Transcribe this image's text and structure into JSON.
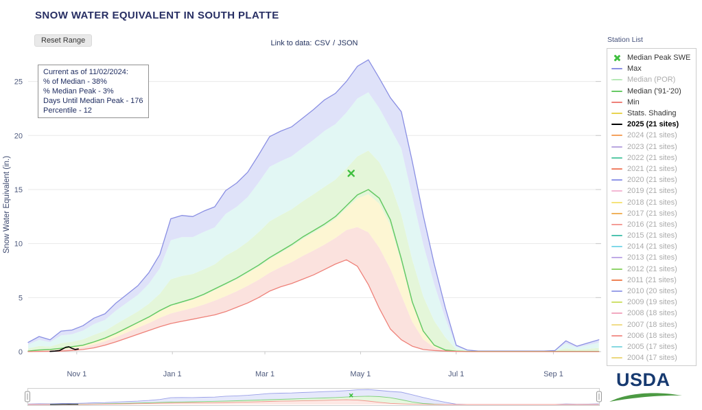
{
  "header": {
    "title": "SNOW WATER EQUIVALENT IN SOUTH PLATTE",
    "reset_button": "Reset Range",
    "data_link_prefix": "Link to data:",
    "csv_label": "CSV",
    "separator": "/",
    "json_label": "JSON",
    "station_list_label": "Station List"
  },
  "tooltip": {
    "lines": [
      "Current as of 11/02/2024:",
      "% of Median - 38%",
      "% Median Peak - 3%",
      "Days Until Median Peak - 176",
      "Percentile - 12"
    ]
  },
  "legend": {
    "items": [
      {
        "label": "Median Peak SWE",
        "type": "marker",
        "color": "#3fbf3f",
        "active": true
      },
      {
        "label": "Max",
        "type": "line",
        "color": "#8a8fe3",
        "active": true
      },
      {
        "label": "Median (POR)",
        "type": "dashed",
        "color": "#b5e8b5",
        "active": false
      },
      {
        "label": "Median ('91-'20)",
        "type": "line",
        "color": "#66c964",
        "active": true
      },
      {
        "label": "Min",
        "type": "line",
        "color": "#ee8078",
        "active": true
      },
      {
        "label": "Stats. Shading",
        "type": "line",
        "color": "#e8d34f",
        "active": true
      },
      {
        "label": "2025 (21 sites)",
        "type": "line",
        "color": "#000000",
        "active": true,
        "bold": true
      },
      {
        "label": "2024 (21 sites)",
        "type": "line",
        "color": "#f4a15d",
        "active": false
      },
      {
        "label": "2023 (21 sites)",
        "type": "line",
        "color": "#b9a6e0",
        "active": false
      },
      {
        "label": "2022 (21 sites)",
        "type": "line",
        "color": "#58c9a5",
        "active": false
      },
      {
        "label": "2021 (21 sites)",
        "type": "line",
        "color": "#f07f64",
        "active": false
      },
      {
        "label": "2020 (21 sites)",
        "type": "line",
        "color": "#8f96e8",
        "active": false
      },
      {
        "label": "2019 (21 sites)",
        "type": "line",
        "color": "#f4b8d4",
        "active": false
      },
      {
        "label": "2018 (21 sites)",
        "type": "line",
        "color": "#f5e37a",
        "active": false
      },
      {
        "label": "2017 (21 sites)",
        "type": "line",
        "color": "#f0b25c",
        "active": false
      },
      {
        "label": "2016 (21 sites)",
        "type": "line",
        "color": "#f49c96",
        "active": false
      },
      {
        "label": "2015 (21 sites)",
        "type": "line",
        "color": "#4fc3b0",
        "active": false
      },
      {
        "label": "2014 (21 sites)",
        "type": "line",
        "color": "#7fd8e8",
        "active": false
      },
      {
        "label": "2013 (21 sites)",
        "type": "line",
        "color": "#c0aae6",
        "active": false
      },
      {
        "label": "2012 (21 sites)",
        "type": "line",
        "color": "#8fd46a",
        "active": false
      },
      {
        "label": "2011 (21 sites)",
        "type": "line",
        "color": "#ef8255",
        "active": false
      },
      {
        "label": "2010 (20 sites)",
        "type": "line",
        "color": "#9aa0e8",
        "active": false
      },
      {
        "label": "2009 (19 sites)",
        "type": "line",
        "color": "#cfe06a",
        "active": false
      },
      {
        "label": "2008 (18 sites)",
        "type": "line",
        "color": "#f2a8c0",
        "active": false
      },
      {
        "label": "2007 (18 sites)",
        "type": "line",
        "color": "#f0dc88",
        "active": false
      },
      {
        "label": "2006 (18 sites)",
        "type": "line",
        "color": "#f2948e",
        "active": false
      },
      {
        "label": "2005 (17 sites)",
        "type": "line",
        "color": "#86d8e0",
        "active": false
      },
      {
        "label": "2004 (17 sites)",
        "type": "line",
        "color": "#ecd87e",
        "active": false
      }
    ]
  },
  "chart_data": {
    "type": "area",
    "title": "SNOW WATER EQUIVALENT IN SOUTH PLATTE",
    "xlabel": "",
    "ylabel": "Snow Water Equivalent (in.)",
    "x_unit": "days since Oct 1 (water year)",
    "xlim": [
      0,
      365
    ],
    "ylim": [
      0,
      27.2
    ],
    "y_ticks": [
      0,
      5,
      10,
      15,
      20,
      25
    ],
    "x_ticks": [
      {
        "day": 31,
        "label": "Nov 1"
      },
      {
        "day": 92,
        "label": "Jan 1"
      },
      {
        "day": 151,
        "label": "Mar 1"
      },
      {
        "day": 212,
        "label": "May 1"
      },
      {
        "day": 273,
        "label": "Jul 1"
      },
      {
        "day": 335,
        "label": "Sep 1"
      }
    ],
    "x": [
      0,
      7,
      14,
      21,
      28,
      35,
      42,
      49,
      56,
      63,
      70,
      77,
      84,
      91,
      98,
      105,
      112,
      119,
      126,
      133,
      140,
      147,
      154,
      161,
      168,
      175,
      182,
      189,
      196,
      203,
      210,
      217,
      224,
      231,
      238,
      245,
      252,
      259,
      266,
      273,
      280,
      287,
      294,
      301,
      308,
      315,
      322,
      329,
      336,
      343,
      350,
      357,
      364
    ],
    "series": [
      {
        "name": "Max",
        "color": "#8a8fe3",
        "values": [
          0.85,
          1.4,
          1.1,
          1.9,
          2.0,
          2.4,
          3.1,
          3.5,
          4.5,
          5.3,
          6.1,
          7.3,
          9.0,
          12.3,
          12.6,
          12.5,
          13.0,
          13.4,
          14.9,
          15.6,
          16.6,
          18.2,
          19.9,
          20.4,
          20.8,
          21.6,
          22.4,
          23.3,
          23.9,
          25.0,
          26.4,
          27.0,
          25.3,
          23.5,
          22.2,
          17.6,
          12.6,
          8.1,
          4.1,
          0.6,
          0.15,
          0.05,
          0.05,
          0.05,
          0.05,
          0.05,
          0.05,
          0.05,
          0.1,
          1.0,
          0.5,
          0.8,
          1.1
        ]
      },
      {
        "name": "Median ('91-'20)",
        "color": "#66c964",
        "values": [
          0.05,
          0.15,
          0.2,
          0.3,
          0.45,
          0.6,
          0.9,
          1.25,
          1.7,
          2.2,
          2.7,
          3.2,
          3.8,
          4.3,
          4.6,
          4.9,
          5.3,
          5.8,
          6.3,
          6.8,
          7.4,
          8.0,
          8.7,
          9.3,
          9.9,
          10.6,
          11.2,
          11.8,
          12.5,
          13.5,
          14.5,
          15.0,
          14.2,
          12.2,
          8.6,
          4.6,
          1.9,
          0.6,
          0.15,
          0.05,
          0.02,
          0.02,
          0.02,
          0.02,
          0.02,
          0.02,
          0.02,
          0.02,
          0.02,
          0.02,
          0.02,
          0.02,
          0.02
        ]
      },
      {
        "name": "Min",
        "color": "#ee8078",
        "values": [
          0,
          0.02,
          0.03,
          0.05,
          0.1,
          0.2,
          0.35,
          0.6,
          0.9,
          1.25,
          1.6,
          1.95,
          2.3,
          2.6,
          2.8,
          3.0,
          3.2,
          3.4,
          3.7,
          4.1,
          4.5,
          5.0,
          5.6,
          6.0,
          6.3,
          6.7,
          7.1,
          7.6,
          8.1,
          8.5,
          7.9,
          6.2,
          4.0,
          2.1,
          1.1,
          0.5,
          0.2,
          0.1,
          0.05,
          0.02,
          0,
          0,
          0,
          0,
          0,
          0,
          0,
          0,
          0,
          0,
          0,
          0,
          0
        ]
      },
      {
        "name": "2025 (21 sites)",
        "color": "#000000",
        "x": [
          14,
          17,
          20,
          22,
          24,
          26,
          28,
          30,
          32
        ],
        "values": [
          0.02,
          0.05,
          0.1,
          0.25,
          0.4,
          0.45,
          0.3,
          0.2,
          0.25
        ]
      }
    ],
    "median_peak_marker": {
      "day": 206,
      "value": 16.5,
      "color": "#3fbf3f",
      "label": "Median Peak SWE"
    },
    "band_colors": [
      "#fbe2de",
      "#fdf6d3",
      "#e4f6d9",
      "#e2f7f4",
      "#dfe2f9"
    ],
    "band_fractions": [
      0.55,
      0.95,
      0.3,
      0.75
    ],
    "legend_position": "right",
    "grid": "horizontal"
  },
  "logo": {
    "text": "USDA"
  }
}
